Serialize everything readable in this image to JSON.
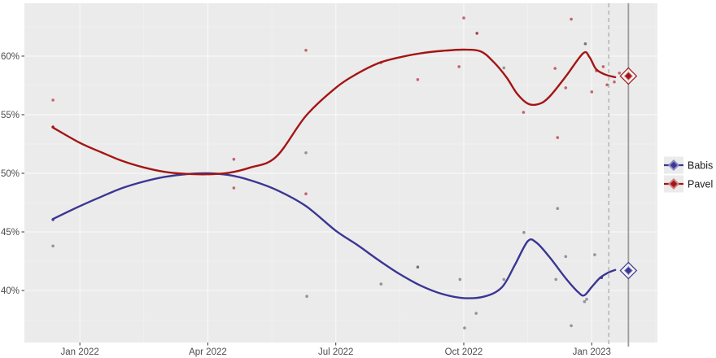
{
  "page": {
    "background": "#ffffff",
    "plot_background": "#ebebeb"
  },
  "chart_data": {
    "type": "scatter",
    "subtype": "poll-points-with-smoothed-trend",
    "title": "",
    "x_axis": {
      "label": "",
      "ticks": [
        {
          "label": "Jan 2022",
          "month": 0
        },
        {
          "label": "Apr 2022",
          "month": 3
        },
        {
          "label": "Jul 2022",
          "month": 6
        },
        {
          "label": "Oct 2022",
          "month": 9
        },
        {
          "label": "Jan 2023",
          "month": 12
        }
      ],
      "minor_months": [
        1.5,
        4.5,
        7.5,
        10.5,
        13.5
      ],
      "range_months": [
        -1.3,
        13.54
      ]
    },
    "y_axis": {
      "label": "",
      "ticks": [
        {
          "label": "60%",
          "value": 60
        },
        {
          "label": "55%",
          "value": 55
        },
        {
          "label": "50%",
          "value": 50
        },
        {
          "label": "45%",
          "value": 45
        },
        {
          "label": "40%",
          "value": 40
        }
      ],
      "minor_values": [
        37.5,
        42.5,
        47.5,
        52.5,
        57.5,
        62.5
      ],
      "range": [
        35.56,
        64.51
      ]
    },
    "grid": {
      "major_color": "#f8f8f8",
      "minor_color": "#f2f2f2",
      "on": true
    },
    "reference_lines": {
      "dashed_month": 12.4,
      "solid_month": 12.86,
      "dashed_color": "#ababab",
      "solid_color": "#9c9c9c"
    },
    "series": [
      {
        "name": "Babis",
        "line_color": "#3a3693",
        "point_color": "#93939b",
        "point_color_mid": "#74747f",
        "point_color_strong": "#4a4aa5",
        "marker_halo": "#8b8bc0",
        "end_marker": {
          "month": 12.86,
          "pct": 41.7
        },
        "trend": [
          [
            -0.63,
            46.1
          ],
          [
            0,
            47.2
          ],
          [
            0.5,
            48.0
          ],
          [
            1,
            48.75
          ],
          [
            1.5,
            49.3
          ],
          [
            2,
            49.7
          ],
          [
            2.5,
            49.93
          ],
          [
            3,
            50.0
          ],
          [
            3.5,
            49.85
          ],
          [
            4,
            49.4
          ],
          [
            4.6,
            48.6
          ],
          [
            5.3,
            47.2
          ],
          [
            6,
            45.1
          ],
          [
            6.5,
            43.9
          ],
          [
            7,
            42.6
          ],
          [
            7.5,
            41.4
          ],
          [
            8,
            40.4
          ],
          [
            8.5,
            39.7
          ],
          [
            9,
            39.35
          ],
          [
            9.5,
            39.5
          ],
          [
            9.9,
            40.3
          ],
          [
            10.2,
            42.2
          ],
          [
            10.5,
            44.2
          ],
          [
            10.7,
            44.1
          ],
          [
            11,
            42.9
          ],
          [
            11.4,
            41.0
          ],
          [
            11.7,
            39.8
          ],
          [
            11.83,
            39.6
          ],
          [
            12.0,
            40.3
          ],
          [
            12.2,
            41.1
          ],
          [
            12.4,
            41.55
          ],
          [
            12.55,
            41.75
          ]
        ],
        "points": [
          [
            -0.63,
            46.05,
            "strong"
          ],
          [
            -0.63,
            43.8,
            null
          ],
          [
            5.3,
            51.75,
            null
          ],
          [
            5.32,
            39.5,
            null
          ],
          [
            7.06,
            40.55,
            null
          ],
          [
            7.92,
            42.0,
            "mid"
          ],
          [
            8.91,
            40.95,
            null
          ],
          [
            9.02,
            36.8,
            null
          ],
          [
            9.29,
            38.05,
            null
          ],
          [
            9.94,
            40.95,
            null
          ],
          [
            9.94,
            59.0,
            null
          ],
          [
            10.41,
            44.95,
            null
          ],
          [
            11.16,
            40.95,
            null
          ],
          [
            11.2,
            47.0,
            null
          ],
          [
            11.39,
            42.9,
            null
          ],
          [
            11.52,
            37.0,
            null
          ],
          [
            11.83,
            39.05,
            null
          ],
          [
            11.85,
            61.05,
            "mid"
          ],
          [
            11.88,
            39.25,
            null
          ],
          [
            12.07,
            43.05,
            null
          ],
          [
            12.23,
            41.1,
            "strong"
          ]
        ]
      },
      {
        "name": "Pavel",
        "line_color": "#a31515",
        "point_color": "#c4646c",
        "point_color_mid": "#a8434e",
        "point_color_strong": "#a32727",
        "marker_halo": "#cc8080",
        "end_marker": {
          "month": 12.86,
          "pct": 58.3
        },
        "trend": [
          [
            -0.63,
            53.9
          ],
          [
            0,
            52.6
          ],
          [
            0.5,
            51.8
          ],
          [
            1,
            51.05
          ],
          [
            1.5,
            50.5
          ],
          [
            2,
            50.12
          ],
          [
            2.5,
            49.95
          ],
          [
            3,
            49.92
          ],
          [
            3.5,
            50.05
          ],
          [
            4,
            50.5
          ],
          [
            4.6,
            51.4
          ],
          [
            5.3,
            54.9
          ],
          [
            6,
            57.3
          ],
          [
            6.5,
            58.5
          ],
          [
            7,
            59.4
          ],
          [
            7.5,
            59.9
          ],
          [
            8,
            60.25
          ],
          [
            8.5,
            60.45
          ],
          [
            9,
            60.55
          ],
          [
            9.4,
            60.4
          ],
          [
            9.7,
            59.5
          ],
          [
            10,
            58.2
          ],
          [
            10.25,
            56.8
          ],
          [
            10.5,
            55.95
          ],
          [
            10.75,
            55.9
          ],
          [
            11,
            56.5
          ],
          [
            11.4,
            58.3
          ],
          [
            11.8,
            60.25
          ],
          [
            11.95,
            59.9
          ],
          [
            12.1,
            58.9
          ],
          [
            12.3,
            58.45
          ],
          [
            12.55,
            58.2
          ]
        ],
        "points": [
          [
            -0.63,
            56.25,
            null
          ],
          [
            -0.63,
            53.95,
            "strong"
          ],
          [
            3.61,
            51.2,
            null
          ],
          [
            3.61,
            48.75,
            null
          ],
          [
            5.3,
            60.5,
            null
          ],
          [
            5.3,
            48.25,
            null
          ],
          [
            7.06,
            59.45,
            null
          ],
          [
            7.92,
            58.0,
            null
          ],
          [
            8.89,
            59.1,
            null
          ],
          [
            9.0,
            63.25,
            null
          ],
          [
            9.31,
            61.95,
            "mid"
          ],
          [
            10.4,
            55.2,
            null
          ],
          [
            11.14,
            58.95,
            null
          ],
          [
            11.2,
            53.05,
            null
          ],
          [
            11.39,
            57.3,
            null
          ],
          [
            11.52,
            63.15,
            null
          ],
          [
            12.0,
            56.95,
            null
          ],
          [
            12.11,
            58.75,
            null
          ],
          [
            12.27,
            59.1,
            null
          ],
          [
            12.36,
            57.55,
            null
          ],
          [
            12.53,
            57.8,
            null
          ],
          [
            12.65,
            58.55,
            null
          ]
        ]
      }
    ],
    "legend": {
      "position": "right",
      "items": [
        {
          "label": "Babis",
          "color": "#3a3693"
        },
        {
          "label": "Pavel",
          "color": "#a31515"
        }
      ]
    }
  }
}
